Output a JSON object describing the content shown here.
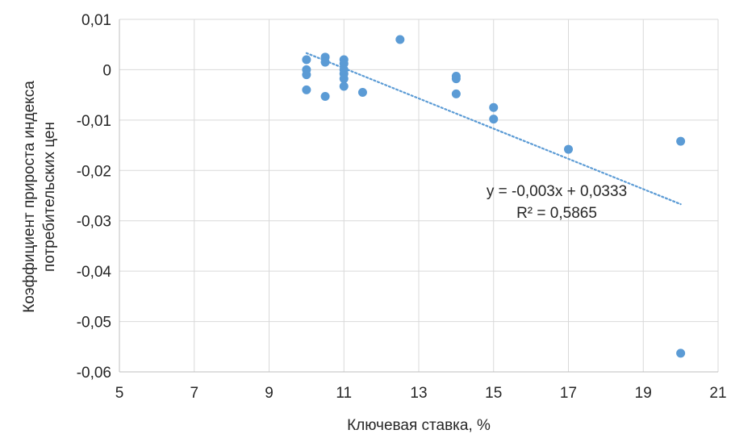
{
  "chart_data": {
    "type": "scatter",
    "xlabel": "Ключевая ставка, %",
    "ylabel_lines": [
      "Коэффициент прироста индекса",
      "потребительских цен"
    ],
    "xlim": [
      5,
      21
    ],
    "ylim": [
      -0.06,
      0.01
    ],
    "x_ticks": [
      5,
      7,
      9,
      11,
      13,
      15,
      17,
      19,
      21
    ],
    "y_ticks": [
      0.01,
      0,
      -0.01,
      -0.02,
      -0.03,
      -0.04,
      -0.05,
      -0.06
    ],
    "x_tick_labels": [
      "5",
      "7",
      "9",
      "11",
      "13",
      "15",
      "17",
      "19",
      "21"
    ],
    "y_tick_labels": [
      "0,01",
      "0",
      "-0,01",
      "-0,02",
      "-0,03",
      "-0,04",
      "-0,05",
      "-0,06"
    ],
    "grid": true,
    "marker_color": "#5b9bd5",
    "trendline": {
      "type": "linear",
      "slope": -0.003,
      "intercept": 0.0333,
      "x_range": [
        10,
        20
      ],
      "style": "dotted",
      "color": "#5b9bd5",
      "equation_text": "y = -0,003x + 0,0333",
      "r2_text": "R² = 0,5865"
    },
    "points": [
      {
        "x": 10,
        "y": 0.002
      },
      {
        "x": 10,
        "y": 0.0
      },
      {
        "x": 10,
        "y": -0.001
      },
      {
        "x": 10,
        "y": -0.004
      },
      {
        "x": 10.5,
        "y": 0.0025
      },
      {
        "x": 10.5,
        "y": 0.0015
      },
      {
        "x": 10.5,
        "y": -0.0053
      },
      {
        "x": 11,
        "y": 0.002
      },
      {
        "x": 11,
        "y": 0.0012
      },
      {
        "x": 11,
        "y": 0.0
      },
      {
        "x": 11,
        "y": -0.0008
      },
      {
        "x": 11,
        "y": -0.0018
      },
      {
        "x": 11,
        "y": -0.0033
      },
      {
        "x": 11.5,
        "y": -0.0045
      },
      {
        "x": 12.5,
        "y": 0.006
      },
      {
        "x": 14,
        "y": -0.0013
      },
      {
        "x": 14,
        "y": -0.0018
      },
      {
        "x": 14,
        "y": -0.0048
      },
      {
        "x": 15,
        "y": -0.0075
      },
      {
        "x": 15,
        "y": -0.0098
      },
      {
        "x": 17,
        "y": -0.0158
      },
      {
        "x": 20,
        "y": -0.0142
      },
      {
        "x": 20,
        "y": -0.0563
      }
    ]
  }
}
